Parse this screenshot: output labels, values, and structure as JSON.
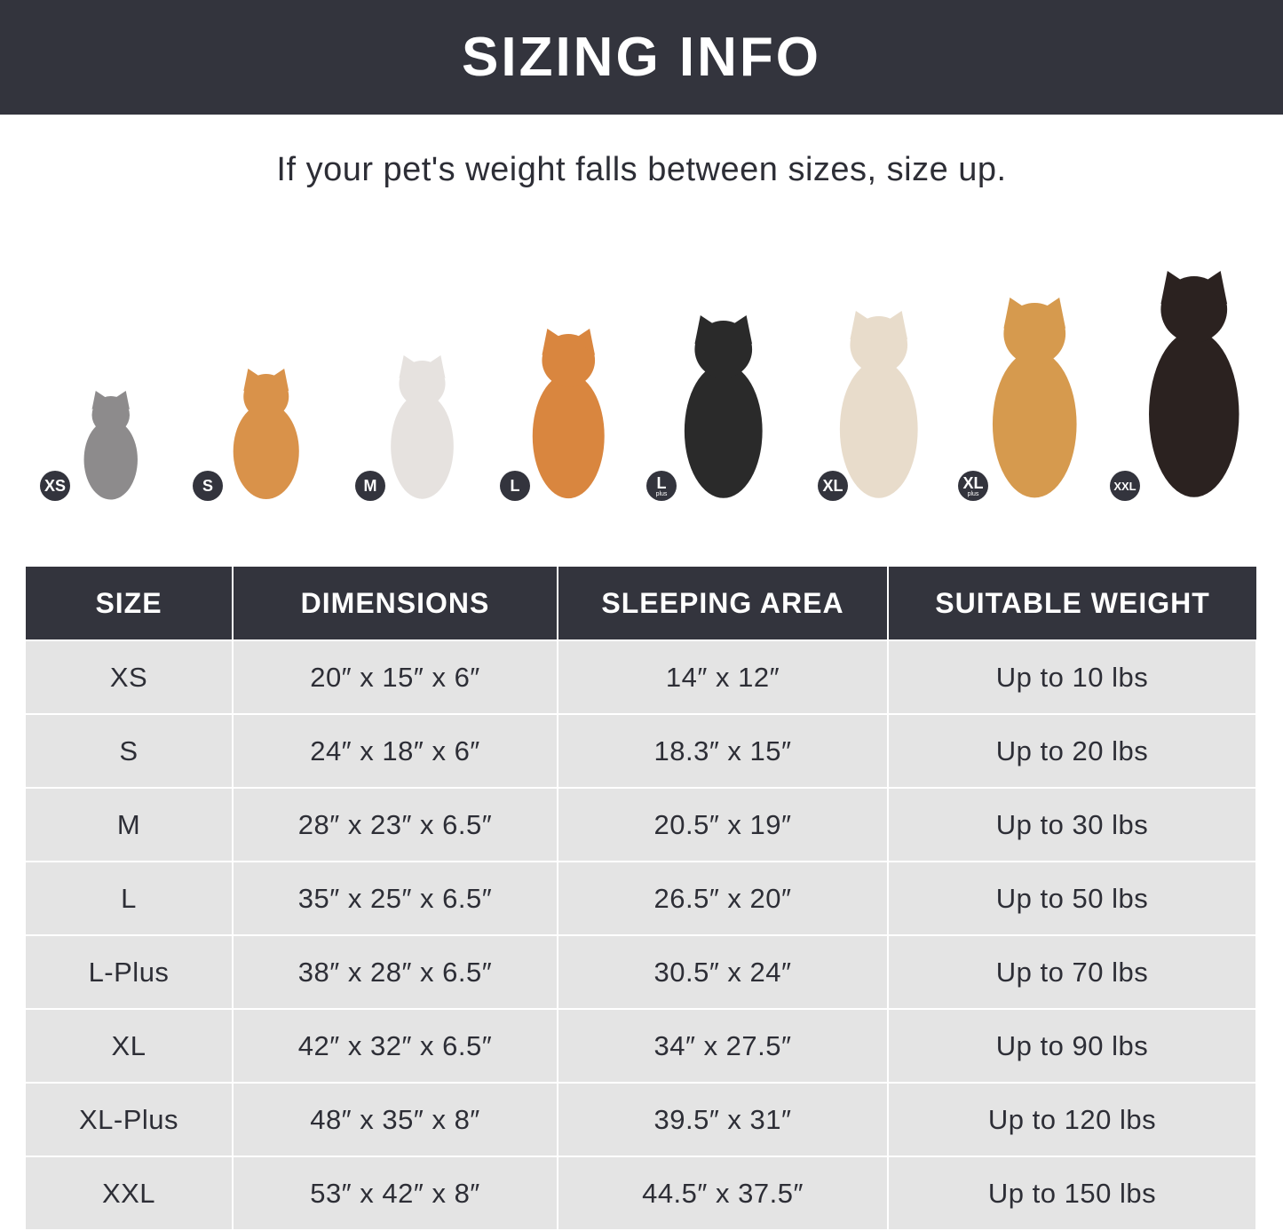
{
  "banner": {
    "title": "SIZING INFO"
  },
  "subtitle": "If your pet's weight falls between sizes, size up.",
  "pets": [
    {
      "badge": "XS",
      "badge_sub": "",
      "animal": "cat",
      "color": "#8d8b8c"
    },
    {
      "badge": "S",
      "badge_sub": "",
      "animal": "pomeranian",
      "color": "#d9924a"
    },
    {
      "badge": "M",
      "badge_sub": "",
      "animal": "french-bulldog",
      "color": "#e6e2df"
    },
    {
      "badge": "L",
      "badge_sub": "",
      "animal": "shiba-inu",
      "color": "#d9863f"
    },
    {
      "badge": "L",
      "badge_sub": "plus",
      "animal": "border-collie",
      "color": "#2a2a2a"
    },
    {
      "badge": "XL",
      "badge_sub": "",
      "animal": "labrador",
      "color": "#e8dccb"
    },
    {
      "badge": "XL",
      "badge_sub": "plus",
      "animal": "golden-retriever",
      "color": "#d69a4e"
    },
    {
      "badge": "XXL",
      "badge_sub": "",
      "animal": "doberman",
      "color": "#2b2220"
    }
  ],
  "table": {
    "headers": [
      "SIZE",
      "DIMENSIONS",
      "SLEEPING AREA",
      "SUITABLE WEIGHT"
    ],
    "rows": [
      [
        "XS",
        "20″ x 15″ x 6″",
        "14″ x 12″",
        "Up to 10 lbs"
      ],
      [
        "S",
        "24″ x 18″ x 6″",
        "18.3″ x 15″",
        "Up to 20 lbs"
      ],
      [
        "M",
        "28″ x 23″ x 6.5″",
        "20.5″ x 19″",
        "Up to 30 lbs"
      ],
      [
        "L",
        "35″ x 25″ x 6.5″",
        "26.5″ x 20″",
        "Up to 50 lbs"
      ],
      [
        "L-Plus",
        "38″ x 28″ x 6.5″",
        "30.5″ x 24″",
        "Up to 70 lbs"
      ],
      [
        "XL",
        "42″ x 32″ x 6.5″",
        "34″ x 27.5″",
        "Up to 90 lbs"
      ],
      [
        "XL-Plus",
        "48″ x 35″ x 8″",
        "39.5″ x 31″",
        "Up to 120 lbs"
      ],
      [
        "XXL",
        "53″ x 42″ x 8″",
        "44.5″ x 37.5″",
        "Up to 150 lbs"
      ]
    ]
  },
  "colors": {
    "dark": "#33343d",
    "cell": "#e4e4e4",
    "text": "#2d2e36"
  }
}
